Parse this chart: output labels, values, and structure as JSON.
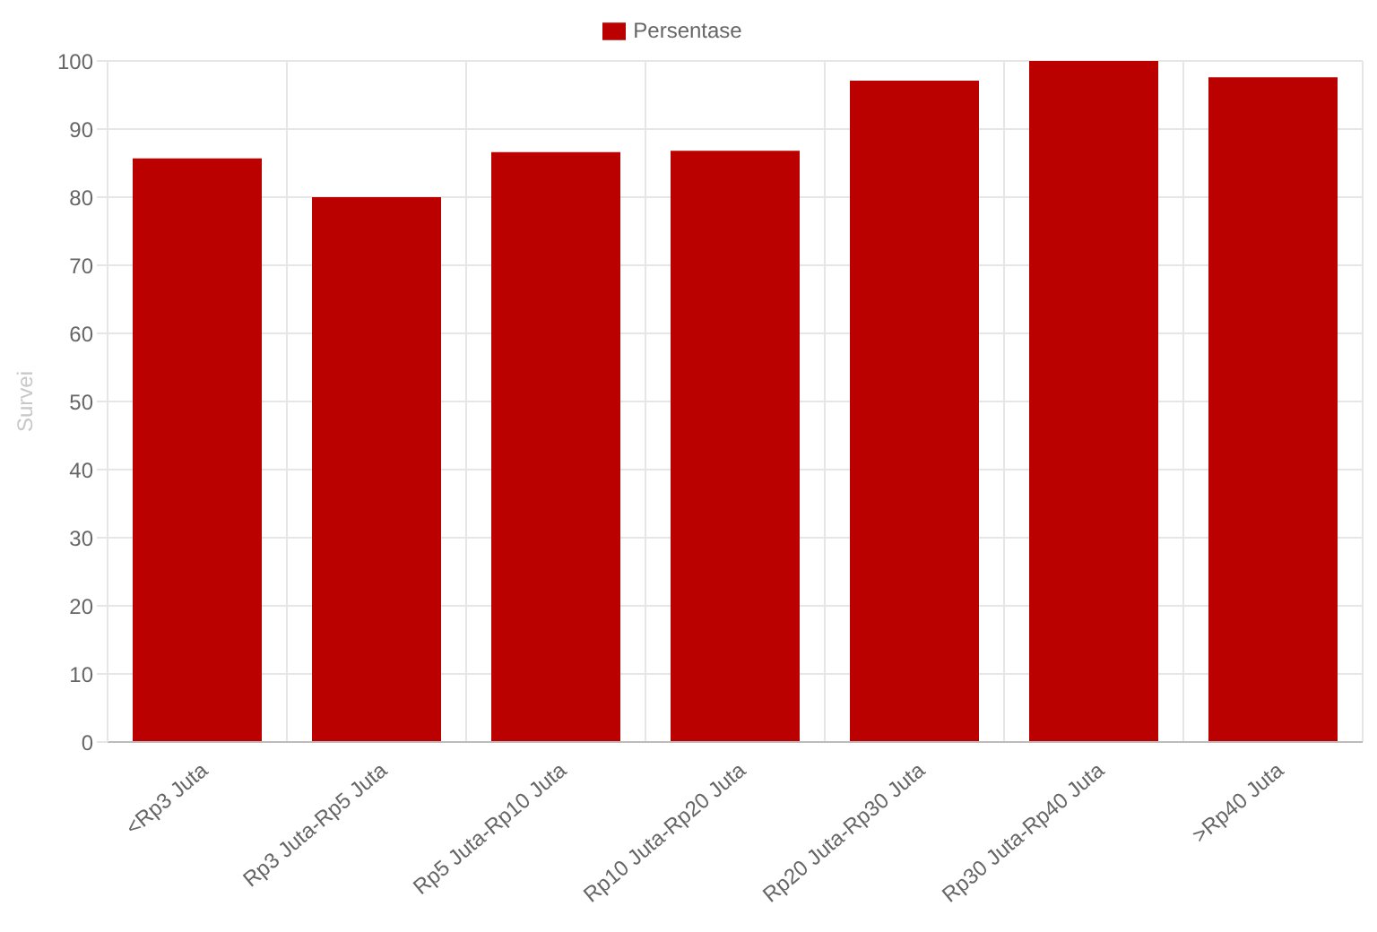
{
  "chart_data": {
    "type": "bar",
    "ylabel": "Survei",
    "categories": [
      "<Rp3 Juta",
      "Rp3 Juta-Rp5 Juta",
      "Rp5 Juta-Rp10 Juta",
      "Rp10 Juta-Rp20 Juta",
      "Rp20 Juta-Rp30 Juta",
      "Rp30 Juta-Rp40 Juta",
      ">Rp40 Juta"
    ],
    "series": [
      {
        "name": "Persentase",
        "color": "#bb0000",
        "values": [
          85.7,
          80.0,
          86.6,
          86.8,
          97.1,
          100,
          97.6
        ]
      }
    ],
    "ylim": [
      0,
      100
    ],
    "yticks": [
      0,
      10,
      20,
      30,
      40,
      50,
      60,
      70,
      80,
      90,
      100
    ],
    "grid": true,
    "legend": "top"
  }
}
